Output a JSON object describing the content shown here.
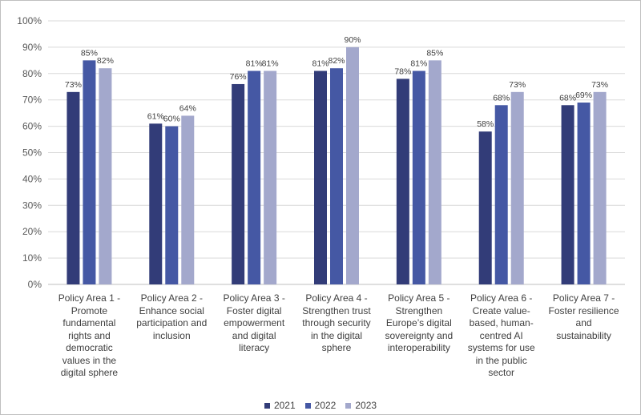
{
  "chart_data": {
    "type": "bar",
    "categories": [
      "Policy Area 1 - Promote fundamental rights and democratic values in the digital sphere",
      "Policy Area 2 - Enhance social participation and inclusion",
      "Policy Area 3 - Foster digital empowerment and digital literacy",
      "Policy Area 4 - Strengthen trust through security in the digital sphere",
      "Policy Area 5 - Strengthen Europe’s digital sovereignty and interoperability",
      "Policy Area 6 - Create value-based, human-centred AI systems for use in the public sector",
      "Policy Area 7 - Foster resilience and sustainability"
    ],
    "category_lines": [
      [
        "Policy Area 1 -",
        "Promote",
        "fundamental",
        "rights and",
        "democratic",
        "values in the",
        "digital sphere"
      ],
      [
        "Policy Area 2 -",
        "Enhance social",
        "participation and",
        "inclusion"
      ],
      [
        "Policy Area 3 -",
        "Foster digital",
        "empowerment",
        "and digital",
        "literacy"
      ],
      [
        "Policy Area 4 -",
        "Strengthen trust",
        "through security",
        "in the digital",
        "sphere"
      ],
      [
        "Policy Area 5 -",
        "Strengthen",
        "Europe’s digital",
        "sovereignty and",
        "interoperability"
      ],
      [
        "Policy Area 6 -",
        "Create value-",
        "based, human-",
        "centred AI",
        "systems for use",
        "in the public",
        "sector"
      ],
      [
        "Policy Area 7 -",
        "Foster resilience",
        "and",
        "sustainability"
      ]
    ],
    "series": [
      {
        "name": "2021",
        "color": "#323c78",
        "values": [
          73,
          61,
          76,
          81,
          78,
          58,
          68
        ]
      },
      {
        "name": "2022",
        "color": "#4558a4",
        "values": [
          85,
          60,
          81,
          82,
          81,
          68,
          69
        ]
      },
      {
        "name": "2023",
        "color": "#a3a8cc",
        "values": [
          82,
          64,
          81,
          90,
          85,
          73,
          73
        ]
      }
    ],
    "ylim": [
      0,
      100
    ],
    "yticks": [
      0,
      10,
      20,
      30,
      40,
      50,
      60,
      70,
      80,
      90,
      100
    ],
    "ytick_labels": [
      "0%",
      "10%",
      "20%",
      "30%",
      "40%",
      "50%",
      "60%",
      "70%",
      "80%",
      "90%",
      "100%"
    ],
    "value_suffix": "%",
    "grid": true,
    "legend_position": "bottom"
  }
}
